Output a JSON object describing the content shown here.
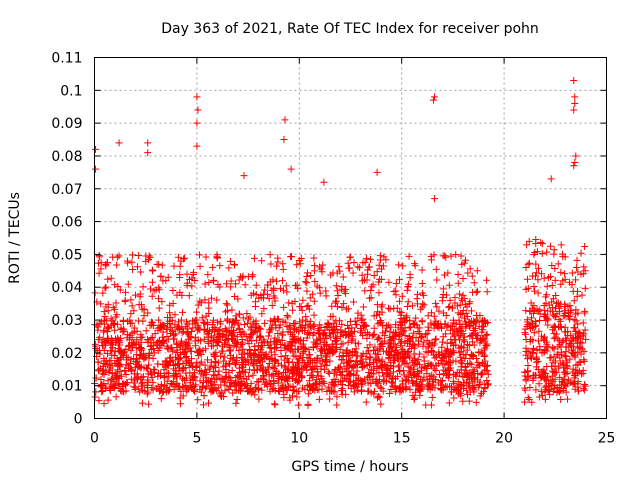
{
  "chart_data": {
    "type": "scatter",
    "title": "Day 363 of 2021, Rate Of TEC Index for receiver pohn",
    "xlabel": "GPS time / hours",
    "ylabel": "ROTI / TECUs",
    "xlim": [
      0,
      25
    ],
    "ylim": [
      0,
      0.11
    ],
    "xticks": [
      0,
      5,
      10,
      15,
      20,
      25
    ],
    "xtick_labels": [
      "0",
      "5",
      "10",
      "15",
      "20",
      "25"
    ],
    "yticks": [
      0,
      0.01,
      0.02,
      0.03,
      0.04,
      0.05,
      0.06,
      0.07,
      0.08,
      0.09,
      0.1,
      0.11
    ],
    "ytick_labels": [
      "0",
      "0.01",
      "0.02",
      "0.03",
      "0.04",
      "0.05",
      "0.06",
      "0.07",
      "0.08",
      "0.09",
      "0.1",
      "0.11"
    ],
    "grid": true,
    "marker": "+",
    "color": "#ff0000",
    "series": [
      {
        "name": "ROTI",
        "segments": [
          {
            "x_start": 0.0,
            "x_end": 19.25,
            "typical_low": 0.008,
            "typical_high": 0.03,
            "occasional_max": 0.05
          },
          {
            "x_start": 21.0,
            "x_end": 24.0,
            "typical_low": 0.008,
            "typical_high": 0.035,
            "occasional_max": 0.055
          }
        ],
        "notable_points": [
          {
            "x": 0.05,
            "y": 0.082
          },
          {
            "x": 0.05,
            "y": 0.076
          },
          {
            "x": 1.2,
            "y": 0.084
          },
          {
            "x": 2.6,
            "y": 0.084
          },
          {
            "x": 2.6,
            "y": 0.081
          },
          {
            "x": 5.0,
            "y": 0.098
          },
          {
            "x": 5.05,
            "y": 0.094
          },
          {
            "x": 5.0,
            "y": 0.09
          },
          {
            "x": 5.0,
            "y": 0.083
          },
          {
            "x": 7.3,
            "y": 0.074
          },
          {
            "x": 9.3,
            "y": 0.091
          },
          {
            "x": 9.25,
            "y": 0.085
          },
          {
            "x": 9.6,
            "y": 0.076
          },
          {
            "x": 11.2,
            "y": 0.072
          },
          {
            "x": 13.8,
            "y": 0.075
          },
          {
            "x": 16.6,
            "y": 0.098
          },
          {
            "x": 16.55,
            "y": 0.097
          },
          {
            "x": 16.6,
            "y": 0.067
          },
          {
            "x": 21.0,
            "y": 0.005
          },
          {
            "x": 22.3,
            "y": 0.073
          },
          {
            "x": 23.4,
            "y": 0.103
          },
          {
            "x": 23.45,
            "y": 0.098
          },
          {
            "x": 23.45,
            "y": 0.096
          },
          {
            "x": 23.4,
            "y": 0.094
          },
          {
            "x": 23.5,
            "y": 0.08
          },
          {
            "x": 23.45,
            "y": 0.078
          },
          {
            "x": 23.4,
            "y": 0.077
          }
        ]
      }
    ]
  }
}
